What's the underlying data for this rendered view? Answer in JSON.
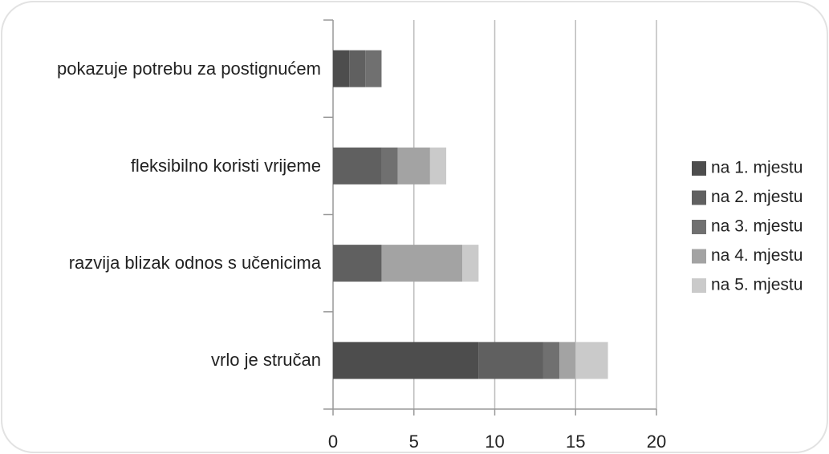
{
  "chart_data": {
    "type": "stacked_barh",
    "categories": [
      "pokazuje potrebu za postignućem",
      "fleksibilno koristi vrijeme",
      "razvija blizak odnos s učenicima",
      "vrlo je stručan"
    ],
    "series": [
      {
        "name": "na 1. mjestu",
        "color": "#4d4d4d",
        "values": [
          1,
          0,
          0,
          9
        ]
      },
      {
        "name": "na 2. mjestu",
        "color": "#606060",
        "values": [
          1,
          3,
          3,
          4
        ]
      },
      {
        "name": "na 3. mjestu",
        "color": "#707070",
        "values": [
          1,
          1,
          0,
          1
        ]
      },
      {
        "name": "na 4. mjestu",
        "color": "#a3a3a3",
        "values": [
          0,
          2,
          5,
          1
        ]
      },
      {
        "name": "na 5. mjestu",
        "color": "#cacaca",
        "values": [
          0,
          1,
          1,
          2
        ]
      }
    ],
    "xlim": [
      0,
      20
    ],
    "xticks": [
      0,
      5,
      10,
      15,
      20
    ],
    "grid": true,
    "legend": "right"
  }
}
